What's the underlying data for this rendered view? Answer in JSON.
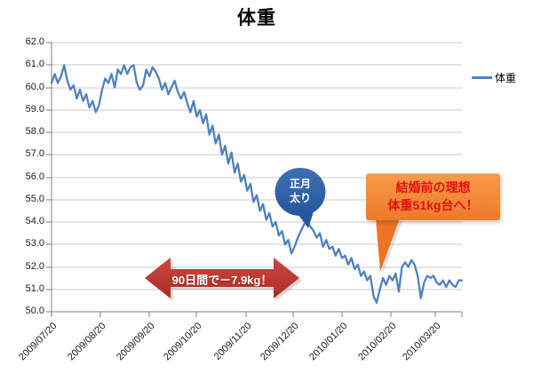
{
  "title": "体重",
  "colors": {
    "line": "#4F81BD",
    "grid": "#C9C9C9",
    "axis": "#808080",
    "balloon_top": "#3E70B2",
    "balloon_bottom": "#26579E",
    "callout_top": "#F89B4A",
    "callout_bottom": "#EC7A2B",
    "callout_text": "#E01212",
    "arrow_top": "#CC4840",
    "arrow_bottom": "#A72C25",
    "arrow_text": "#FFFFFF"
  },
  "legend": {
    "label": "体重"
  },
  "annotations": {
    "balloon": {
      "line1": "正月",
      "line2": "太り"
    },
    "callout": {
      "line1": "結婚前の理想",
      "line2": "体重51kg台へ！"
    },
    "arrow": {
      "label": "90日間で－7.9kg！"
    }
  },
  "chart_data": {
    "type": "line",
    "title": "体重",
    "xlabel": "",
    "ylabel": "",
    "ylim": [
      50.0,
      62.0
    ],
    "y_tick_step": 1.0,
    "grid": "horizontal",
    "legend_position": "right",
    "y_tick_labels": [
      "62.0",
      "61.0",
      "60.0",
      "59.0",
      "58.0",
      "57.0",
      "56.0",
      "55.0",
      "54.0",
      "53.0",
      "52.0",
      "51.0",
      "50.0"
    ],
    "x_tick_labels": [
      "2009/07/20",
      "2009/08/20",
      "2009/09/20",
      "2009/10/20",
      "2009/11/20",
      "2009/12/20",
      "2010/01/20",
      "2010/02/20",
      "2010/03/20"
    ],
    "x_tick_days": [
      0,
      31,
      62,
      92,
      123,
      153,
      184,
      215,
      243
    ],
    "total_days": 260,
    "series": [
      {
        "name": "体重",
        "day_step": 2,
        "values": [
          60.2,
          60.6,
          60.2,
          60.5,
          61.0,
          60.3,
          59.9,
          60.1,
          59.5,
          59.9,
          59.4,
          59.7,
          59.1,
          59.4,
          58.9,
          59.2,
          59.9,
          60.4,
          60.2,
          60.6,
          60.0,
          60.8,
          60.6,
          61.0,
          60.6,
          60.9,
          61.0,
          60.2,
          59.9,
          60.1,
          60.8,
          60.5,
          60.9,
          60.7,
          60.4,
          59.9,
          60.2,
          59.7,
          60.0,
          60.3,
          59.8,
          59.5,
          59.8,
          59.3,
          58.9,
          59.4,
          58.7,
          59.0,
          58.4,
          58.8,
          57.9,
          58.3,
          57.5,
          57.9,
          57.0,
          57.4,
          56.6,
          57.1,
          56.2,
          56.6,
          55.8,
          56.1,
          55.4,
          55.7,
          54.9,
          55.2,
          54.5,
          54.8,
          54.1,
          54.4,
          53.8,
          54.0,
          53.4,
          53.6,
          53.0,
          53.2,
          52.6,
          52.9,
          53.3,
          53.6,
          53.9,
          54.0,
          53.8,
          53.6,
          53.3,
          53.5,
          52.9,
          53.2,
          52.8,
          52.9,
          52.5,
          52.8,
          52.4,
          52.5,
          52.1,
          52.4,
          51.9,
          52.1,
          51.6,
          51.8,
          51.4,
          51.6,
          50.7,
          50.4,
          51.0,
          51.5,
          51.2,
          51.6,
          51.4,
          51.7,
          50.9,
          52.0,
          52.2,
          52.0,
          52.3,
          52.1,
          51.6,
          50.6,
          51.3,
          51.6,
          51.5,
          51.6,
          51.3,
          51.2,
          51.4,
          51.1,
          51.4,
          51.2,
          51.1,
          51.4,
          51.4
        ]
      }
    ]
  }
}
